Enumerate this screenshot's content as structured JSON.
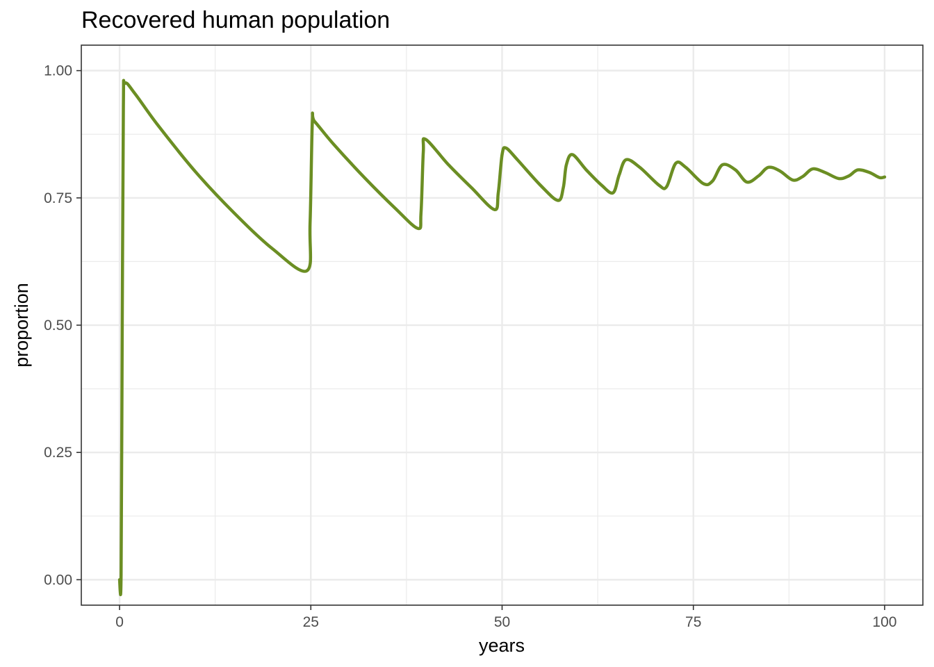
{
  "chart_data": {
    "type": "line",
    "title": "Recovered human population",
    "xlabel": "years",
    "ylabel": "proportion",
    "xlim": [
      -5,
      105
    ],
    "ylim": [
      -0.05,
      1.05
    ],
    "x_ticks": [
      0,
      25,
      50,
      75,
      100
    ],
    "x_tick_labels": [
      "0",
      "25",
      "50",
      "75",
      "100"
    ],
    "y_ticks": [
      0,
      0.25,
      0.5,
      0.75,
      1.0
    ],
    "y_tick_labels": [
      "0.00",
      "0.25",
      "0.50",
      "0.75",
      "1.00"
    ],
    "grid": true,
    "legend": "none",
    "series": [
      {
        "color": "#6b8e23",
        "x": [
          0,
          0.2,
          0.35,
          0.5,
          0.7,
          2,
          5,
          10,
          15,
          20,
          24.5,
          24.9,
          25.2,
          25.5,
          28,
          32,
          36,
          39,
          39.4,
          39.7,
          40.0,
          43,
          46,
          49,
          49.5,
          50.0,
          50.5,
          52,
          55,
          57.3,
          58,
          58.4,
          59.2,
          61,
          63,
          64.5,
          65.3,
          66.2,
          68,
          70.5,
          71.5,
          72.7,
          74,
          76.3,
          77.5,
          78.8,
          80.5,
          82,
          83.5,
          84.8,
          86.3,
          88,
          89.3,
          90.6,
          92.2,
          94,
          95.3,
          96.5,
          98,
          99.3,
          100
        ],
        "y": [
          0.0,
          0.01,
          0.5,
          0.93,
          0.975,
          0.955,
          0.893,
          0.8,
          0.72,
          0.65,
          0.607,
          0.7,
          0.9,
          0.9,
          0.855,
          0.79,
          0.73,
          0.69,
          0.72,
          0.84,
          0.865,
          0.815,
          0.77,
          0.727,
          0.76,
          0.835,
          0.848,
          0.825,
          0.775,
          0.745,
          0.77,
          0.815,
          0.835,
          0.805,
          0.775,
          0.76,
          0.795,
          0.825,
          0.81,
          0.775,
          0.772,
          0.818,
          0.81,
          0.778,
          0.783,
          0.815,
          0.805,
          0.781,
          0.793,
          0.81,
          0.803,
          0.785,
          0.792,
          0.807,
          0.8,
          0.788,
          0.793,
          0.805,
          0.8,
          0.79,
          0.791
        ]
      }
    ]
  }
}
